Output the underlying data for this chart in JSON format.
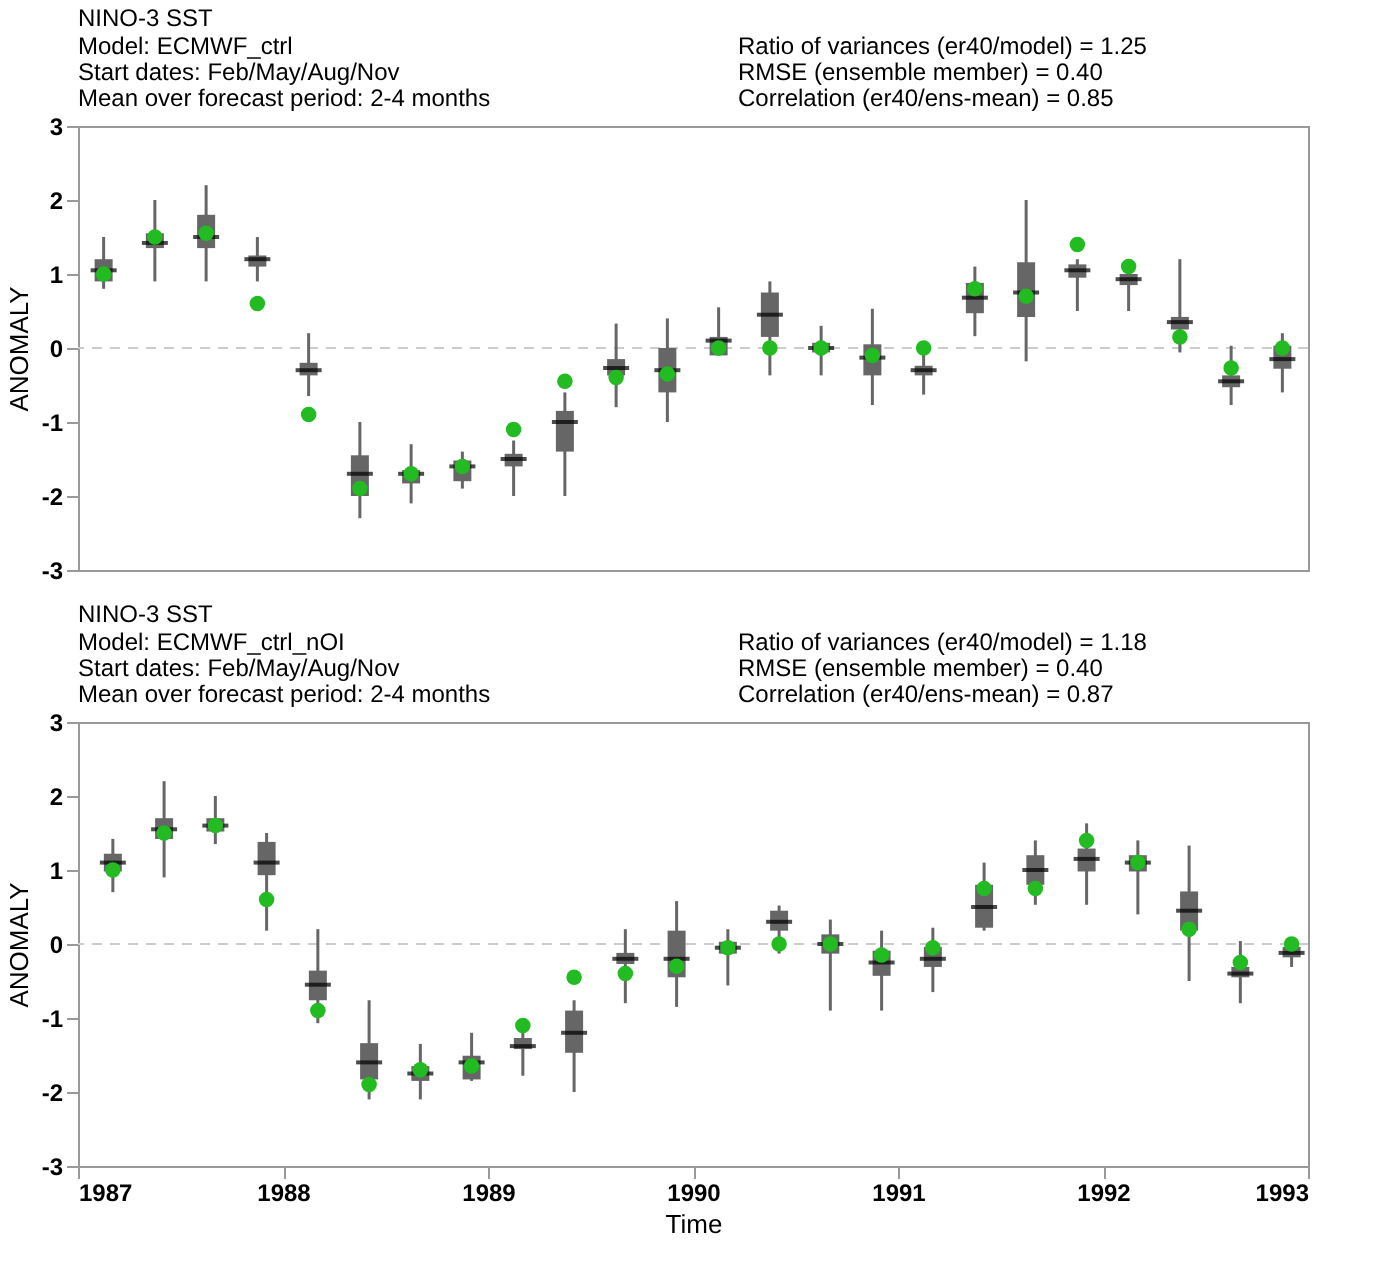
{
  "chart_data": [
    {
      "type": "box",
      "title": "NINO-3 SST",
      "annotations": [
        "Model: ECMWF_ctrl",
        "Start dates: Feb/May/Aug/Nov",
        "Mean over forecast period: 2-4 months",
        "Ratio of variances (er40/model) = 1.25",
        "RMSE (ensemble member) = 0.40",
        "Correlation (er40/ens-mean) = 0.85"
      ],
      "ylabel": "ANOMALY",
      "color": "#666666",
      "categories": [
        null,
        null,
        null,
        null,
        null,
        null,
        null,
        null,
        null,
        null,
        null,
        null,
        null,
        null,
        null,
        null,
        null,
        null,
        null,
        null,
        null,
        null,
        null,
        null
      ],
      "boxes": [
        {
          "low": 0.8,
          "q1": 0.9,
          "median": 1.05,
          "q3": 1.2,
          "high": 1.5
        },
        {
          "low": 0.9,
          "q1": 1.35,
          "median": 1.42,
          "q3": 1.55,
          "high": 2.0
        },
        {
          "low": 0.9,
          "q1": 1.35,
          "median": 1.5,
          "q3": 1.8,
          "high": 2.2
        },
        {
          "low": 0.9,
          "q1": 1.1,
          "median": 1.2,
          "q3": 1.25,
          "high": 1.5
        },
        {
          "low": -0.65,
          "q1": -0.37,
          "median": -0.3,
          "q3": -0.2,
          "high": 0.2
        },
        {
          "low": -2.3,
          "q1": -2.0,
          "median": -1.7,
          "q3": -1.45,
          "high": -1.0
        },
        {
          "low": -2.1,
          "q1": -1.83,
          "median": -1.7,
          "q3": -1.65,
          "high": -1.3
        },
        {
          "low": -1.9,
          "q1": -1.8,
          "median": -1.6,
          "q3": -1.52,
          "high": -1.4
        },
        {
          "low": -2.0,
          "q1": -1.6,
          "median": -1.5,
          "q3": -1.43,
          "high": -1.25
        },
        {
          "low": -2.0,
          "q1": -1.4,
          "median": -1.0,
          "q3": -0.85,
          "high": -0.6
        },
        {
          "low": -0.8,
          "q1": -0.37,
          "median": -0.27,
          "q3": -0.15,
          "high": 0.33
        },
        {
          "low": -1.0,
          "q1": -0.6,
          "median": -0.3,
          "q3": 0.0,
          "high": 0.4
        },
        {
          "low": -0.1,
          "q1": -0.1,
          "median": 0.1,
          "q3": 0.15,
          "high": 0.55
        },
        {
          "low": -0.37,
          "q1": 0.15,
          "median": 0.45,
          "q3": 0.75,
          "high": 0.9
        },
        {
          "low": -0.37,
          "q1": -0.06,
          "median": 0.0,
          "q3": 0.07,
          "high": 0.3
        },
        {
          "low": -0.77,
          "q1": -0.37,
          "median": -0.13,
          "q3": 0.05,
          "high": 0.53
        },
        {
          "low": -0.63,
          "q1": -0.37,
          "median": -0.3,
          "q3": -0.24,
          "high": 0.03
        },
        {
          "low": 0.16,
          "q1": 0.47,
          "median": 0.68,
          "q3": 0.88,
          "high": 1.1
        },
        {
          "low": -0.18,
          "q1": 0.42,
          "median": 0.75,
          "q3": 1.16,
          "high": 2.0
        },
        {
          "low": 0.5,
          "q1": 0.95,
          "median": 1.05,
          "q3": 1.13,
          "high": 1.2
        },
        {
          "low": 0.5,
          "q1": 0.85,
          "median": 0.93,
          "q3": 1.0,
          "high": 1.1
        },
        {
          "low": -0.06,
          "q1": 0.25,
          "median": 0.35,
          "q3": 0.42,
          "high": 1.2
        },
        {
          "low": -0.77,
          "q1": -0.53,
          "median": -0.45,
          "q3": -0.37,
          "high": 0.03
        },
        {
          "low": -0.6,
          "q1": -0.28,
          "median": -0.15,
          "q3": 0.03,
          "high": 0.2
        }
      ],
      "series": [
        {
          "type": "scatter",
          "color": "#22bb22",
          "marker": "circle",
          "values": [
            1.0,
            1.5,
            1.55,
            0.6,
            -0.9,
            -1.9,
            -1.7,
            -1.6,
            -1.1,
            -0.45,
            -0.4,
            -0.35,
            0.0,
            0.0,
            0.0,
            -0.1,
            0.0,
            0.8,
            0.7,
            1.4,
            1.1,
            0.15,
            -0.27,
            0.0
          ]
        }
      ],
      "ylim": [
        -3,
        3
      ],
      "yticks": [
        -3,
        -2,
        -1,
        0,
        1,
        2,
        3
      ],
      "ref_lines": [
        {
          "axis": "y",
          "value": 0,
          "color": "#cccccc",
          "line_style": "dashed"
        }
      ],
      "tick_labels": "y",
      "grid": false
    },
    {
      "type": "box",
      "title": "NINO-3 SST",
      "annotations": [
        "Model: ECMWF_ctrl_nOI",
        "Start dates: Feb/May/Aug/Nov",
        "Mean over forecast period: 2-4 months",
        "Ratio of variances (er40/model) = 1.18",
        "RMSE (ensemble member) = 0.40",
        "Correlation (er40/ens-mean) = 0.87"
      ],
      "ylabel": "ANOMALY",
      "xlabel": "Time",
      "color": "#666666",
      "x": [
        1987.17,
        1987.42,
        1987.67,
        1987.92,
        1988.17,
        1988.42,
        1988.67,
        1988.92,
        1989.17,
        1989.42,
        1989.67,
        1989.92,
        1990.17,
        1990.42,
        1990.67,
        1990.92,
        1991.17,
        1991.42,
        1991.67,
        1991.92,
        1992.17,
        1992.42,
        1992.67,
        1992.92
      ],
      "boxes": [
        {
          "low": 0.7,
          "q1": 0.98,
          "median": 1.1,
          "q3": 1.22,
          "high": 1.42
        },
        {
          "low": 0.9,
          "q1": 1.42,
          "median": 1.55,
          "q3": 1.7,
          "high": 2.2
        },
        {
          "low": 1.35,
          "q1": 1.52,
          "median": 1.6,
          "q3": 1.7,
          "high": 2.0
        },
        {
          "low": 0.18,
          "q1": 0.93,
          "median": 1.1,
          "q3": 1.38,
          "high": 1.5
        },
        {
          "low": -1.07,
          "q1": -0.76,
          "median": -0.55,
          "q3": -0.36,
          "high": 0.2
        },
        {
          "low": -2.1,
          "q1": -1.83,
          "median": -1.6,
          "q3": -1.34,
          "high": -0.76
        },
        {
          "low": -2.1,
          "q1": -1.85,
          "median": -1.75,
          "q3": -1.65,
          "high": -1.35
        },
        {
          "low": -1.85,
          "q1": -1.83,
          "median": -1.6,
          "q3": -1.51,
          "high": -1.2
        },
        {
          "low": -1.78,
          "q1": -1.42,
          "median": -1.38,
          "q3": -1.27,
          "high": -1.0
        },
        {
          "low": -2.0,
          "q1": -1.47,
          "median": -1.2,
          "q3": -0.9,
          "high": -0.76
        },
        {
          "low": -0.8,
          "q1": -0.27,
          "median": -0.2,
          "q3": -0.12,
          "high": 0.2
        },
        {
          "low": -0.85,
          "q1": -0.45,
          "median": -0.2,
          "q3": 0.18,
          "high": 0.58
        },
        {
          "low": -0.56,
          "q1": -0.13,
          "median": -0.05,
          "q3": 0.03,
          "high": 0.2
        },
        {
          "low": -0.13,
          "q1": 0.18,
          "median": 0.3,
          "q3": 0.45,
          "high": 0.52
        },
        {
          "low": -0.9,
          "q1": -0.13,
          "median": 0.0,
          "q3": 0.13,
          "high": 0.33
        },
        {
          "low": -0.9,
          "q1": -0.43,
          "median": -0.25,
          "q3": -0.09,
          "high": 0.18
        },
        {
          "low": -0.65,
          "q1": -0.31,
          "median": -0.2,
          "q3": -0.04,
          "high": 0.22
        },
        {
          "low": 0.18,
          "q1": 0.22,
          "median": 0.5,
          "q3": 0.8,
          "high": 1.1
        },
        {
          "low": 0.53,
          "q1": 0.8,
          "median": 1.0,
          "q3": 1.2,
          "high": 1.4
        },
        {
          "low": 0.53,
          "q1": 0.98,
          "median": 1.15,
          "q3": 1.29,
          "high": 1.63
        },
        {
          "low": 0.4,
          "q1": 0.98,
          "median": 1.1,
          "q3": 1.2,
          "high": 1.4
        },
        {
          "low": -0.5,
          "q1": 0.18,
          "median": 0.45,
          "q3": 0.71,
          "high": 1.33
        },
        {
          "low": -0.8,
          "q1": -0.45,
          "median": -0.4,
          "q3": -0.31,
          "high": 0.04
        },
        {
          "low": -0.31,
          "q1": -0.18,
          "median": -0.12,
          "q3": -0.04,
          "high": 0.04
        }
      ],
      "series": [
        {
          "type": "scatter",
          "color": "#22bb22",
          "marker": "circle",
          "values": [
            1.0,
            1.5,
            1.6,
            0.6,
            -0.9,
            -1.9,
            -1.7,
            -1.65,
            -1.1,
            -0.45,
            -0.4,
            -0.3,
            -0.05,
            0.0,
            0.0,
            -0.15,
            -0.05,
            0.75,
            0.75,
            1.4,
            1.1,
            0.2,
            -0.25,
            0.0
          ]
        }
      ],
      "xlim": [
        1987,
        1993
      ],
      "xticks": [
        1987,
        1988,
        1989,
        1990,
        1991,
        1992,
        1993
      ],
      "ylim": [
        -3,
        3
      ],
      "yticks": [
        -3,
        -2,
        -1,
        0,
        1,
        2,
        3
      ],
      "ref_lines": [
        {
          "axis": "y",
          "value": 0,
          "color": "#cccccc",
          "line_style": "dashed"
        }
      ],
      "grid": false
    }
  ]
}
